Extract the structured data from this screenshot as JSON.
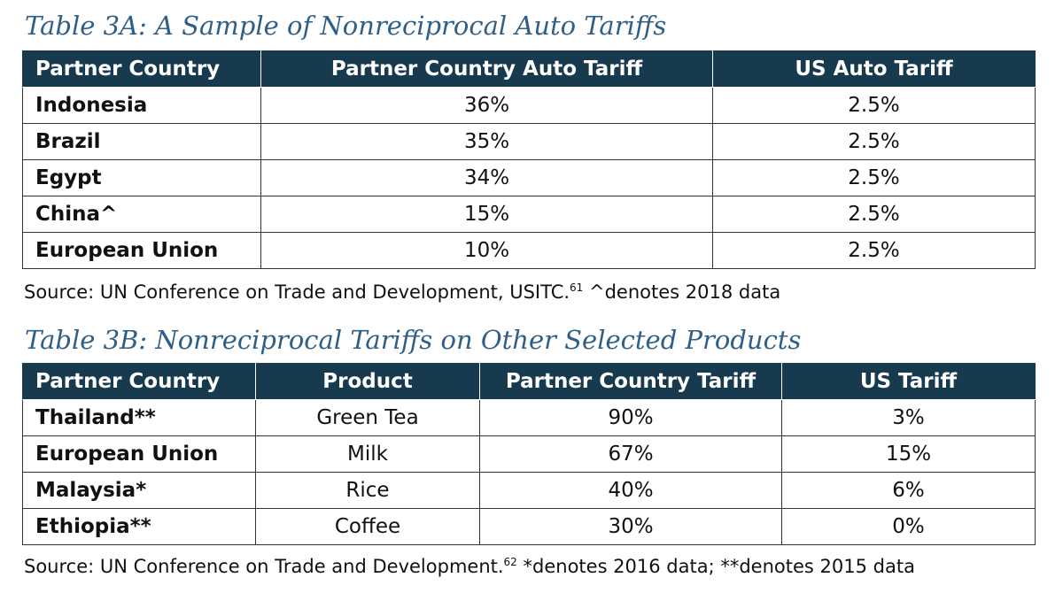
{
  "table_3a": {
    "title": "Table 3A: A Sample of Nonreciprocal Auto Tariffs",
    "headers": [
      "Partner Country",
      "Partner Country Auto Tariff",
      "US Auto Tariff"
    ],
    "rows": [
      {
        "country": "Indonesia",
        "partner_tariff": "36%",
        "us_tariff": "2.5%"
      },
      {
        "country": "Brazil",
        "partner_tariff": "35%",
        "us_tariff": "2.5%"
      },
      {
        "country": "Egypt",
        "partner_tariff": "34%",
        "us_tariff": "2.5%"
      },
      {
        "country": "China^",
        "partner_tariff": "15%",
        "us_tariff": "2.5%"
      },
      {
        "country": "European Union",
        "partner_tariff": "10%",
        "us_tariff": "2.5%"
      }
    ],
    "source": {
      "text": "Source: UN Conference on Trade and Development, USITC.",
      "footnote": "61",
      "note": " ^denotes 2018 data"
    }
  },
  "table_3b": {
    "title": "Table 3B: Nonreciprocal Tariffs on Other Selected Products",
    "headers": [
      "Partner Country",
      "Product",
      "Partner Country Tariff",
      "US Tariff"
    ],
    "rows": [
      {
        "country": "Thailand**",
        "product": "Green Tea",
        "partner_tariff": "90%",
        "us_tariff": "3%"
      },
      {
        "country": "European Union",
        "product": "Milk",
        "partner_tariff": "67%",
        "us_tariff": "15%"
      },
      {
        "country": "Malaysia*",
        "product": "Rice",
        "partner_tariff": "40%",
        "us_tariff": "6%"
      },
      {
        "country": "Ethiopia**",
        "product": "Coffee",
        "partner_tariff": "30%",
        "us_tariff": "0%"
      }
    ],
    "source": {
      "text": "Source: UN Conference on Trade and Development.",
      "footnote": "62",
      "note": " *denotes 2016 data; **denotes 2015 data"
    }
  },
  "colors": {
    "title": "#2f5f86",
    "header_bg": "#183a4f",
    "header_text": "#ffffff",
    "border": "#333333"
  }
}
